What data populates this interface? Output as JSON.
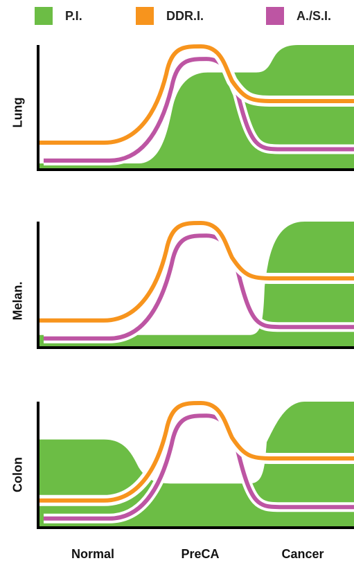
{
  "legend": [
    {
      "label": "P.I.",
      "color": "#6cbd45"
    },
    {
      "label": "DDR.I.",
      "color": "#f7941d"
    },
    {
      "label": "A./S.I.",
      "color": "#bd55a3"
    }
  ],
  "chart_data": {
    "type": "area",
    "stages": [
      "Normal",
      "PreCA",
      "Cancer"
    ],
    "series_names": [
      "P.I.",
      "DDR.I.",
      "A./S.I."
    ],
    "ylim": [
      0,
      1
    ],
    "panels": [
      {
        "label": "Lung",
        "x": [
          0,
          1,
          2
        ],
        "series": [
          {
            "name": "P.I.",
            "values": [
              0.05,
              0.78,
              1.0
            ]
          },
          {
            "name": "DDR.I.",
            "values": [
              0.12,
              1.0,
              0.5
            ]
          },
          {
            "name": "A./S.I.",
            "values": [
              0.05,
              0.95,
              0.15
            ]
          }
        ]
      },
      {
        "label": "Melan.",
        "x": [
          0,
          1,
          2
        ],
        "series": [
          {
            "name": "P.I.",
            "values": [
              0.1,
              0.1,
              1.0
            ]
          },
          {
            "name": "DDR.I.",
            "values": [
              0.12,
              1.0,
              0.5
            ]
          },
          {
            "name": "A./S.I.",
            "values": [
              0.05,
              0.95,
              0.15
            ]
          }
        ]
      },
      {
        "label": "Colon",
        "x": [
          0,
          1,
          2
        ],
        "series": [
          {
            "name": "P.I.",
            "values": [
              0.7,
              0.35,
              1.0
            ]
          },
          {
            "name": "DDR.I.",
            "values": [
              0.12,
              1.0,
              0.5
            ]
          },
          {
            "name": "A./S.I.",
            "values": [
              0.05,
              0.95,
              0.15
            ]
          }
        ]
      }
    ]
  }
}
